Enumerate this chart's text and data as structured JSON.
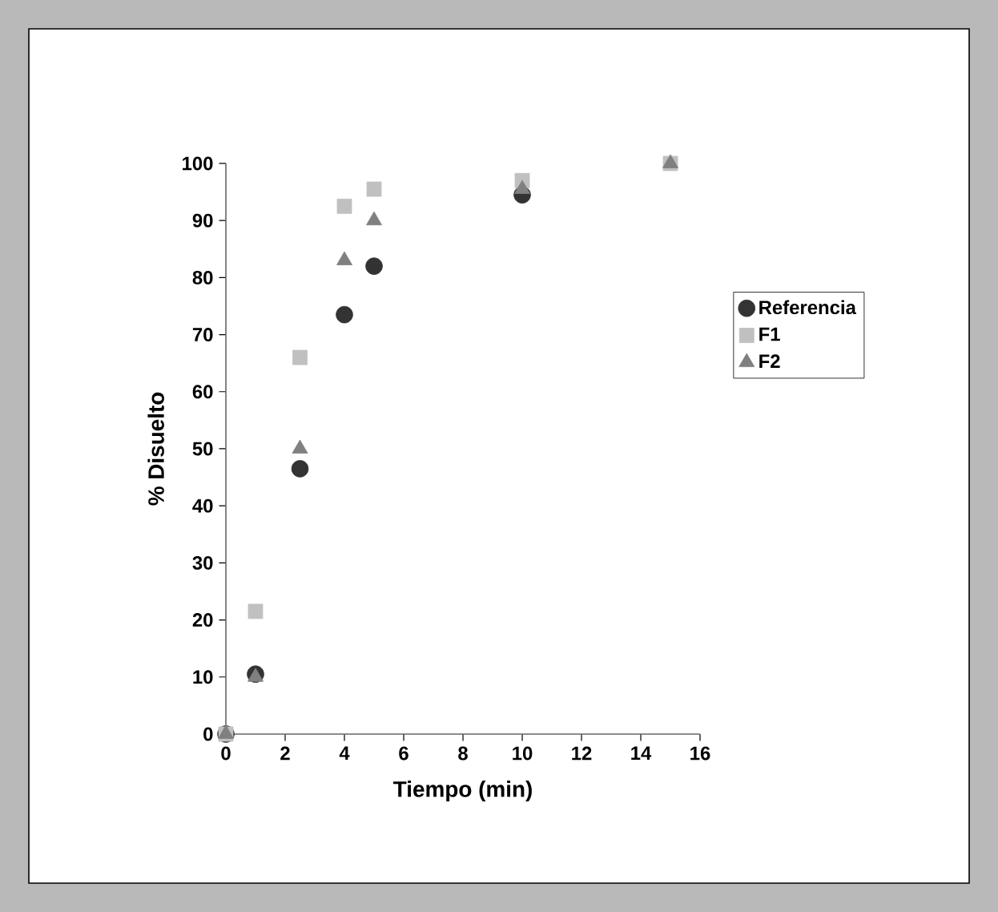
{
  "chart_data": {
    "type": "scatter",
    "xlabel": "Tiempo (min)",
    "ylabel": "% Disuelto",
    "xlim": [
      0,
      16
    ],
    "xticks": [
      0,
      2,
      4,
      6,
      8,
      10,
      12,
      14,
      16
    ],
    "ylim": [
      0,
      100
    ],
    "yticks": [
      0,
      10,
      20,
      30,
      40,
      50,
      60,
      70,
      80,
      90,
      100
    ],
    "grid": false,
    "legend": "right",
    "x": [
      0,
      1,
      2.5,
      4,
      5,
      10,
      15
    ],
    "series": [
      {
        "name": "Referencia",
        "color": "#333333",
        "marker": "circle",
        "values": [
          0,
          10.5,
          46.5,
          73.5,
          82,
          94.5,
          null
        ]
      },
      {
        "name": "F1",
        "color": "#c0c0c0",
        "marker": "square",
        "values": [
          0,
          21.5,
          66,
          92.5,
          95.5,
          97,
          100
        ]
      },
      {
        "name": "F2",
        "color": "#808080",
        "marker": "triangle",
        "values": [
          0,
          10,
          50,
          83,
          90,
          95.5,
          100
        ]
      }
    ]
  }
}
